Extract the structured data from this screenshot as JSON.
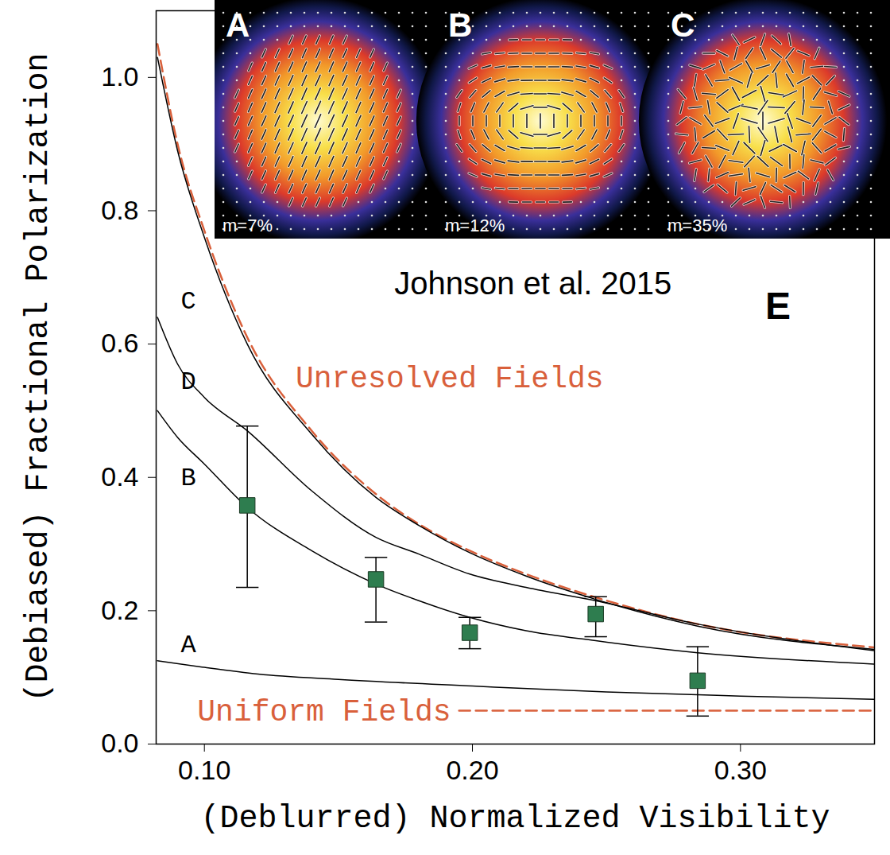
{
  "chart_data": {
    "type": "line",
    "xlabel": "(Deblurred) Normalized Visibility",
    "ylabel": "(Debiased) Fractional Polarization",
    "xlim": [
      0.082,
      0.35
    ],
    "ylim": [
      0,
      1.1
    ],
    "xticks": [
      {
        "value": 0.1,
        "label": "0.10"
      },
      {
        "value": 0.2,
        "label": "0.20"
      },
      {
        "value": 0.3,
        "label": "0.30"
      }
    ],
    "yticks": [
      {
        "value": 0,
        "label": "0.0"
      },
      {
        "value": 0.2,
        "label": "0.2"
      },
      {
        "value": 0.4,
        "label": "0.4"
      },
      {
        "value": 0.6,
        "label": "0.6"
      },
      {
        "value": 0.8,
        "label": "0.8"
      },
      {
        "value": 1,
        "label": "1.0"
      }
    ],
    "grid": false,
    "series": [
      {
        "name": "Unresolved Fields",
        "color": "#d9603b",
        "line_style": "dashed",
        "x": [
          0.0825,
          0.09,
          0.1,
          0.116,
          0.14,
          0.164,
          0.18,
          0.199,
          0.22,
          0.246,
          0.284,
          0.35
        ],
        "values": [
          1.05,
          0.9,
          0.77,
          0.61,
          0.47,
          0.375,
          0.33,
          0.29,
          0.255,
          0.22,
          0.18,
          0.145
        ],
        "label_position": [
          0.134,
          0.55
        ]
      },
      {
        "name": "C",
        "color": "#000000",
        "line_style": "solid",
        "x": [
          0.0825,
          0.09,
          0.1,
          0.116,
          0.14,
          0.164,
          0.18,
          0.199,
          0.22,
          0.246,
          0.284,
          0.35
        ],
        "values": [
          1.03,
          0.89,
          0.76,
          0.6,
          0.465,
          0.37,
          0.328,
          0.287,
          0.252,
          0.217,
          0.177,
          0.142
        ],
        "label_position": [
          0.094,
          0.665
        ]
      },
      {
        "name": "D",
        "color": "#000000",
        "line_style": "solid",
        "x": [
          0.0825,
          0.09,
          0.1,
          0.116,
          0.14,
          0.164,
          0.18,
          0.199,
          0.22,
          0.246,
          0.284,
          0.35
        ],
        "values": [
          0.64,
          0.57,
          0.52,
          0.47,
          0.38,
          0.31,
          0.285,
          0.255,
          0.235,
          0.215,
          0.18,
          0.14
        ],
        "label_position": [
          0.094,
          0.545
        ]
      },
      {
        "name": "B",
        "color": "#000000",
        "line_style": "solid",
        "x": [
          0.0825,
          0.09,
          0.1,
          0.116,
          0.14,
          0.164,
          0.18,
          0.199,
          0.22,
          0.246,
          0.284,
          0.35
        ],
        "values": [
          0.5,
          0.46,
          0.42,
          0.355,
          0.29,
          0.24,
          0.215,
          0.19,
          0.17,
          0.155,
          0.137,
          0.12
        ],
        "label_position": [
          0.094,
          0.4
        ]
      },
      {
        "name": "A",
        "color": "#000000",
        "line_style": "solid",
        "x": [
          0.0825,
          0.1,
          0.12,
          0.15,
          0.2,
          0.25,
          0.3,
          0.35
        ],
        "values": [
          0.125,
          0.115,
          0.105,
          0.097,
          0.087,
          0.078,
          0.072,
          0.067
        ],
        "label_position": [
          0.094,
          0.15
        ]
      },
      {
        "name": "Uniform Fields",
        "color": "#d9603b",
        "line_style": "dashed",
        "x": [
          0.195,
          0.35
        ],
        "values": [
          0.05,
          0.05
        ],
        "label_position": [
          0.192,
          0.05
        ]
      },
      {
        "type": "scatter",
        "marker": "square",
        "color": "#2e7d4f",
        "x": [
          0.116,
          0.164,
          0.199,
          0.246,
          0.284
        ],
        "values": [
          0.358,
          0.247,
          0.167,
          0.195,
          0.095
        ],
        "y_low": [
          0.235,
          0.183,
          0.143,
          0.161,
          0.042
        ],
        "y_high": [
          0.477,
          0.28,
          0.19,
          0.221,
          0.146
        ]
      }
    ],
    "annotations": [
      {
        "text": "Johnson et al. 2015",
        "x": 0.2226,
        "y": 0.69
      },
      {
        "text": "E",
        "x": 0.314,
        "y": 0.656
      }
    ],
    "insets": [
      {
        "label": "A",
        "text": "m=7%"
      },
      {
        "label": "B",
        "text": "m=12%"
      },
      {
        "label": "C",
        "text": "m=35%"
      }
    ]
  }
}
